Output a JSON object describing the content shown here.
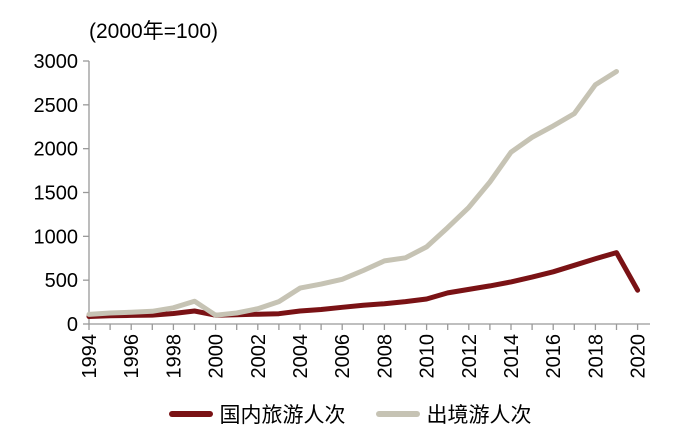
{
  "chart_data": {
    "type": "line",
    "title": "(2000年=100)",
    "xlabel": "",
    "ylabel": "",
    "ylim": [
      0,
      3000
    ],
    "y_ticks": [
      0,
      500,
      1000,
      1500,
      2000,
      2500,
      3000
    ],
    "x_minor_tick_years": [
      1994,
      1995,
      1996,
      1997,
      1998,
      1999,
      2000,
      2001,
      2002,
      2003,
      2004,
      2005,
      2006,
      2007,
      2008,
      2009,
      2010,
      2011,
      2012,
      2013,
      2014,
      2015,
      2016,
      2017,
      2018,
      2019,
      2020
    ],
    "x_tick_labels": [
      "1994",
      "1996",
      "1998",
      "2000",
      "2002",
      "2004",
      "2006",
      "2008",
      "2010",
      "2012",
      "2014",
      "2016",
      "2018",
      "2020"
    ],
    "grid": false,
    "legend_position": "bottom",
    "axis_color": "#999999",
    "text_color": "#000000",
    "series": [
      {
        "name": "国内旅游人次",
        "color": "#7a1215",
        "x": [
          1994,
          1995,
          1996,
          1997,
          1998,
          1999,
          2000,
          2001,
          2002,
          2003,
          2004,
          2005,
          2006,
          2007,
          2008,
          2009,
          2010,
          2011,
          2012,
          2013,
          2014,
          2015,
          2016,
          2017,
          2018,
          2019,
          2020
        ],
        "values": [
          85,
          95,
          98,
          102,
          120,
          148,
          100,
          105,
          112,
          118,
          148,
          165,
          190,
          215,
          232,
          255,
          285,
          355,
          395,
          435,
          480,
          535,
          595,
          670,
          745,
          815,
          385
        ]
      },
      {
        "name": "出境游人次",
        "color": "#c6c3b4",
        "x": [
          1994,
          1995,
          1996,
          1997,
          1998,
          1999,
          2000,
          2001,
          2002,
          2003,
          2004,
          2005,
          2006,
          2007,
          2008,
          2009,
          2010,
          2011,
          2012,
          2013,
          2014,
          2015,
          2016,
          2017,
          2018,
          2019
        ],
        "values": [
          110,
          125,
          135,
          145,
          185,
          260,
          100,
          125,
          175,
          255,
          410,
          455,
          510,
          610,
          720,
          755,
          880,
          1100,
          1330,
          1620,
          1960,
          2130,
          2260,
          2400,
          2730,
          2880
        ]
      }
    ]
  }
}
